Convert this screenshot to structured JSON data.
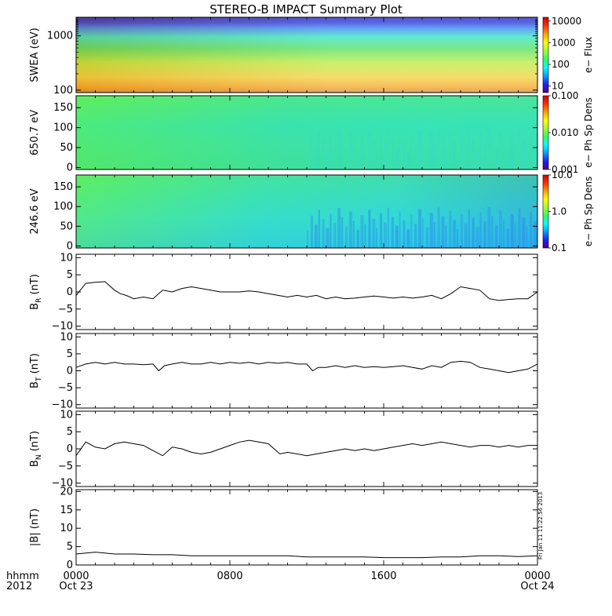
{
  "title": "STEREO-B IMPACT Summary Plot",
  "time_axis": {
    "row1_label": "hhmm",
    "row2_label": "2012",
    "ticks": [
      {
        "value": 0,
        "hhmm": "0000",
        "date": "Oct 23"
      },
      {
        "value": 8,
        "hhmm": "0800",
        "date": ""
      },
      {
        "value": 16,
        "hhmm": "1600",
        "date": ""
      },
      {
        "value": 24,
        "hhmm": "0000",
        "date": "Oct 24"
      }
    ],
    "range_hours": [
      0,
      24
    ]
  },
  "stamp": "Fri Jan 11 11:22:56 2013",
  "chart_data": [
    {
      "type": "heatmap",
      "ylabel": "SWEA (eV)",
      "ylog": true,
      "ylim": [
        90,
        2200
      ],
      "yticks": [
        {
          "v": 100,
          "label": "100"
        },
        {
          "v": 1000,
          "label": "1000"
        }
      ],
      "colorbar": {
        "label": "e− Flux",
        "log": true,
        "range": [
          5,
          15000
        ],
        "ticks": [
          {
            "v": 10000,
            "label": "10000"
          },
          {
            "v": 1000,
            "label": "1000"
          },
          {
            "v": 100,
            "label": "100"
          },
          {
            "v": 10,
            "label": "10"
          }
        ]
      },
      "description_values": {
        "energy_eV": [
          100,
          150,
          300,
          600,
          1000,
          1500,
          2000
        ],
        "flux_at_0h": [
          6000,
          3000,
          800,
          250,
          80,
          15,
          5
        ],
        "flux_at_24h": [
          2500,
          1500,
          500,
          180,
          60,
          12,
          5
        ]
      }
    },
    {
      "type": "heatmap",
      "ylabel": "650.7 eV",
      "ylim": [
        -5,
        180
      ],
      "yticks": [
        {
          "v": 0,
          "label": "0"
        },
        {
          "v": 50,
          "label": "50"
        },
        {
          "v": 100,
          "label": "100"
        },
        {
          "v": 150,
          "label": "150"
        }
      ],
      "colorbar": {
        "label": "e− Ph Sp Dens",
        "log": true,
        "range": [
          0.001,
          0.1
        ],
        "ticks": [
          {
            "v": 0.1,
            "label": "0.100"
          },
          {
            "v": 0.01,
            "label": "0.010"
          },
          {
            "v": 0.001,
            "label": "0.001"
          }
        ]
      },
      "description_values": {
        "hours": [
          0,
          4,
          8,
          12,
          14,
          16,
          20,
          24
        ],
        "density": [
          0.03,
          0.025,
          0.018,
          0.015,
          0.012,
          0.011,
          0.01,
          0.011
        ]
      }
    },
    {
      "type": "heatmap",
      "ylabel": "246.6 eV",
      "ylim": [
        -5,
        180
      ],
      "yticks": [
        {
          "v": 0,
          "label": "0"
        },
        {
          "v": 50,
          "label": "50"
        },
        {
          "v": 100,
          "label": "100"
        },
        {
          "v": 150,
          "label": "150"
        }
      ],
      "colorbar": {
        "label": "e− Ph Sp Dens",
        "log": true,
        "range": [
          0.1,
          10
        ],
        "ticks": [
          {
            "v": 10,
            "label": "10.0"
          },
          {
            "v": 1,
            "label": "1.0"
          },
          {
            "v": 0.1,
            "label": "0.1"
          }
        ]
      },
      "description_values": {
        "hours": [
          0,
          4,
          8,
          12,
          14,
          16,
          20,
          24
        ],
        "density": [
          2.5,
          2.0,
          1.6,
          1.3,
          0.8,
          0.7,
          0.5,
          0.6
        ]
      }
    },
    {
      "type": "line",
      "ylabel": "B",
      "ylabel_sub": "R",
      "ylabel_unit": " (nT)",
      "ylim": [
        -11,
        11
      ],
      "yticks": [
        {
          "v": -10,
          "label": "−10"
        },
        {
          "v": -5,
          "label": "−5"
        },
        {
          "v": 0,
          "label": "0"
        },
        {
          "v": 5,
          "label": "5"
        },
        {
          "v": 10,
          "label": "10"
        }
      ],
      "x": [
        0,
        0.5,
        1,
        1.5,
        2,
        2.3,
        2.6,
        3,
        3.5,
        4,
        4.5,
        5,
        5.5,
        6,
        6.5,
        7,
        7.5,
        8,
        8.5,
        9,
        9.5,
        10,
        10.5,
        11,
        11.5,
        12,
        12.5,
        13,
        13.5,
        14,
        14.5,
        15,
        15.5,
        16,
        16.5,
        17,
        17.5,
        18,
        18.5,
        19,
        19.5,
        20,
        20.5,
        21,
        21.5,
        22,
        22.5,
        23,
        23.5,
        24
      ],
      "y": [
        -1,
        2.5,
        2.8,
        3,
        0.5,
        -0.5,
        -1,
        -2,
        -1.5,
        -2,
        0.5,
        0,
        1,
        1.5,
        1,
        0.5,
        0,
        0,
        0,
        0.3,
        0,
        -0.5,
        -1,
        -1.5,
        -1,
        -1.5,
        -1,
        -2,
        -1.5,
        -2,
        -1.8,
        -1.5,
        -1.2,
        -1.5,
        -1.8,
        -1.5,
        -1.8,
        -1.5,
        -1,
        -2,
        -0.5,
        1.5,
        1,
        0.5,
        -2,
        -2.5,
        -2.2,
        -2,
        -2,
        0
      ]
    },
    {
      "type": "line",
      "ylabel": "B",
      "ylabel_sub": "T",
      "ylabel_unit": " (nT)",
      "ylim": [
        -11,
        11
      ],
      "yticks": [
        {
          "v": -10,
          "label": "−10"
        },
        {
          "v": -5,
          "label": "−5"
        },
        {
          "v": 0,
          "label": "0"
        },
        {
          "v": 5,
          "label": "5"
        },
        {
          "v": 10,
          "label": "10"
        }
      ],
      "x": [
        0,
        0.5,
        1,
        1.5,
        2,
        2.5,
        3,
        3.5,
        4,
        4.3,
        4.6,
        5,
        5.5,
        6,
        6.5,
        7,
        7.5,
        8,
        8.5,
        9,
        9.5,
        10,
        10.5,
        11,
        11.5,
        12,
        12.3,
        12.6,
        13,
        13.5,
        14,
        14.5,
        15,
        15.5,
        16,
        16.5,
        17,
        17.5,
        18,
        18.5,
        19,
        19.5,
        20,
        20.5,
        21,
        21.5,
        22,
        22.5,
        23,
        23.5,
        24
      ],
      "y": [
        1,
        2,
        2.5,
        2,
        2.5,
        2,
        2,
        1.8,
        2,
        0,
        1.5,
        2,
        2.5,
        2,
        2,
        2.5,
        2,
        2.5,
        2.2,
        2.5,
        2,
        2.5,
        2.2,
        2.5,
        2,
        2,
        0,
        1,
        1,
        1.5,
        1,
        1.5,
        1,
        1.2,
        1,
        1.2,
        1.5,
        1,
        0.5,
        1.5,
        1,
        2.5,
        2.8,
        2.5,
        1,
        0.5,
        0,
        -0.5,
        0,
        0.5,
        2
      ]
    },
    {
      "type": "line",
      "ylabel": "B",
      "ylabel_sub": "N",
      "ylabel_unit": " (nT)",
      "ylim": [
        -11,
        11
      ],
      "yticks": [
        {
          "v": -10,
          "label": "−10"
        },
        {
          "v": -5,
          "label": "−5"
        },
        {
          "v": 0,
          "label": "0"
        },
        {
          "v": 5,
          "label": "5"
        },
        {
          "v": 10,
          "label": "10"
        }
      ],
      "x": [
        0,
        0.5,
        1,
        1.5,
        2,
        2.5,
        3,
        3.5,
        4,
        4.5,
        5,
        5.5,
        6,
        6.5,
        7,
        7.5,
        8,
        8.5,
        9,
        9.5,
        10,
        10.3,
        10.6,
        11,
        11.5,
        12,
        12.5,
        13,
        13.5,
        14,
        14.5,
        15,
        15.5,
        16,
        16.5,
        17,
        17.5,
        18,
        18.5,
        19,
        19.5,
        20,
        20.5,
        21,
        21.5,
        22,
        22.5,
        23,
        23.5,
        24
      ],
      "y": [
        -2,
        2,
        0.5,
        0,
        1.5,
        2,
        1.5,
        1,
        -0.5,
        -2,
        0.5,
        0,
        -1,
        -1.5,
        -1,
        0,
        1,
        2,
        2.5,
        2,
        1.5,
        0,
        -1.5,
        -1,
        -1.5,
        -2,
        -1.5,
        -1,
        -0.5,
        0,
        -0.5,
        0,
        -0.5,
        0,
        0.5,
        1,
        1.5,
        1,
        1.5,
        2,
        1.5,
        1,
        0.5,
        1,
        1,
        0.5,
        1,
        0.5,
        1,
        1
      ]
    },
    {
      "type": "line",
      "ylabel": "|B| (nT)",
      "ylim": [
        0,
        20.5
      ],
      "yticks": [
        {
          "v": 0,
          "label": "0"
        },
        {
          "v": 5,
          "label": "5"
        },
        {
          "v": 10,
          "label": "10"
        },
        {
          "v": 15,
          "label": "15"
        },
        {
          "v": 20,
          "label": "20"
        }
      ],
      "x": [
        0,
        1,
        2,
        3,
        4,
        5,
        6,
        7,
        8,
        9,
        10,
        11,
        12,
        13,
        14,
        15,
        16,
        17,
        18,
        19,
        20,
        21,
        22,
        23,
        24
      ],
      "y": [
        3,
        3.5,
        3,
        3,
        2.8,
        2.8,
        2.5,
        2.5,
        2.5,
        2.5,
        2.5,
        2.5,
        2.2,
        2.2,
        2.2,
        2.2,
        2,
        2,
        2,
        2.2,
        2.2,
        2.5,
        2.5,
        2.3,
        2.5
      ]
    }
  ]
}
